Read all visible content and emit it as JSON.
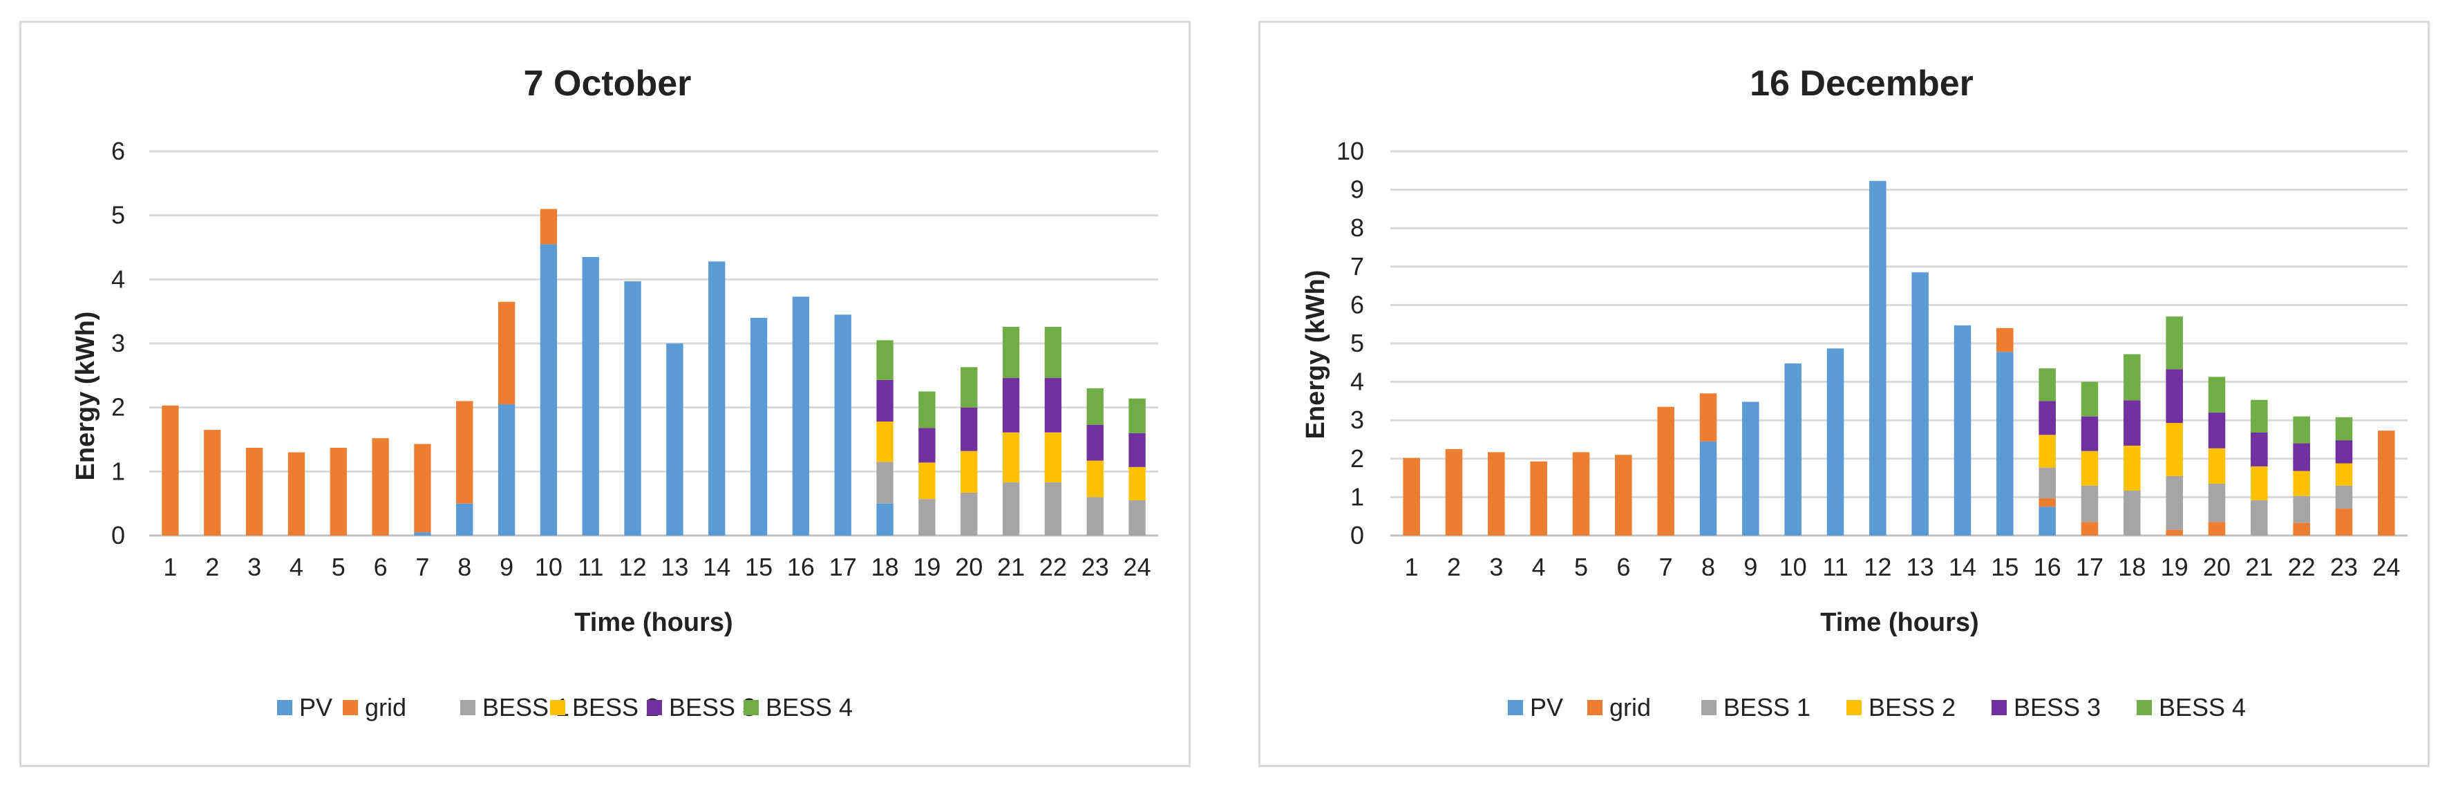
{
  "chart_data": [
    {
      "type": "bar",
      "stacked": true,
      "title": "7 October",
      "xlabel": "Time (hours)",
      "ylabel": "Energy (kWh)",
      "ylim": [
        0,
        6
      ],
      "yticks": [
        "0",
        "1",
        "2",
        "3",
        "4",
        "5",
        "6"
      ],
      "grid": true,
      "legend_position": "bottom",
      "categories": [
        "1",
        "2",
        "3",
        "4",
        "5",
        "6",
        "7",
        "8",
        "9",
        "10",
        "11",
        "12",
        "13",
        "14",
        "15",
        "16",
        "17",
        "18",
        "19",
        "20",
        "21",
        "22",
        "23",
        "24"
      ],
      "series": [
        {
          "name": "PV",
          "color": "#5B9BD5",
          "values": [
            0,
            0,
            0,
            0,
            0,
            0,
            0.05,
            0.5,
            2.05,
            4.55,
            4.35,
            3.97,
            3.0,
            4.28,
            3.4,
            3.73,
            3.45,
            0.5,
            0,
            0,
            0,
            0,
            0,
            0
          ]
        },
        {
          "name": "grid",
          "color": "#ED7D31",
          "values": [
            2.03,
            1.65,
            1.37,
            1.3,
            1.37,
            1.52,
            1.38,
            1.6,
            1.6,
            0.55,
            0,
            0,
            0,
            0,
            0,
            0,
            0,
            0,
            0,
            0,
            0,
            0,
            0,
            0
          ]
        },
        {
          "name": "BESS 1",
          "color": "#A5A5A5",
          "values": [
            0,
            0,
            0,
            0,
            0,
            0,
            0,
            0,
            0,
            0,
            0,
            0,
            0,
            0,
            0,
            0,
            0,
            0.65,
            0.57,
            0.67,
            0.83,
            0.83,
            0.6,
            0.55
          ]
        },
        {
          "name": "BESS 2",
          "color": "#FFC000",
          "values": [
            0,
            0,
            0,
            0,
            0,
            0,
            0,
            0,
            0,
            0,
            0,
            0,
            0,
            0,
            0,
            0,
            0,
            0.63,
            0.57,
            0.65,
            0.78,
            0.78,
            0.57,
            0.52
          ]
        },
        {
          "name": "BESS 3",
          "color": "#7030A0",
          "values": [
            0,
            0,
            0,
            0,
            0,
            0,
            0,
            0,
            0,
            0,
            0,
            0,
            0,
            0,
            0,
            0,
            0,
            0.65,
            0.54,
            0.68,
            0.85,
            0.85,
            0.56,
            0.53
          ]
        },
        {
          "name": "BESS 4",
          "color": "#70AD47",
          "values": [
            0,
            0,
            0,
            0,
            0,
            0,
            0,
            0,
            0,
            0,
            0,
            0,
            0,
            0,
            0,
            0,
            0,
            0.62,
            0.57,
            0.63,
            0.8,
            0.8,
            0.57,
            0.54
          ]
        }
      ]
    },
    {
      "type": "bar",
      "stacked": true,
      "title": "16 December",
      "xlabel": "Time (hours)",
      "ylabel": "Energy (kWh)",
      "ylim": [
        0,
        10
      ],
      "yticks": [
        "0",
        "1",
        "2",
        "3",
        "4",
        "5",
        "6",
        "7",
        "8",
        "9",
        "10"
      ],
      "grid": true,
      "legend_position": "bottom",
      "categories": [
        "1",
        "2",
        "3",
        "4",
        "5",
        "6",
        "7",
        "8",
        "9",
        "10",
        "11",
        "12",
        "13",
        "14",
        "15",
        "16",
        "17",
        "18",
        "19",
        "20",
        "21",
        "22",
        "23",
        "24"
      ],
      "series": [
        {
          "name": "PV",
          "color": "#5B9BD5",
          "values": [
            0,
            0,
            0,
            0,
            0,
            0,
            0,
            2.45,
            3.48,
            4.48,
            4.87,
            9.23,
            6.85,
            5.47,
            4.78,
            0.75,
            0,
            0,
            0,
            0,
            0,
            0,
            0,
            0
          ]
        },
        {
          "name": "grid",
          "color": "#ED7D31",
          "values": [
            2.02,
            2.25,
            2.17,
            1.93,
            2.17,
            2.1,
            3.35,
            1.25,
            0,
            0,
            0,
            0,
            0,
            0,
            0.62,
            0.22,
            0.35,
            0,
            0.15,
            0.35,
            0,
            0.33,
            0.7,
            2.73
          ]
        },
        {
          "name": "BESS 1",
          "color": "#A5A5A5",
          "values": [
            0,
            0,
            0,
            0,
            0,
            0,
            0,
            0,
            0,
            0,
            0,
            0,
            0,
            0,
            0,
            0.8,
            0.95,
            1.17,
            1.4,
            1.0,
            0.92,
            0.7,
            0.6,
            0
          ]
        },
        {
          "name": "BESS 2",
          "color": "#FFC000",
          "values": [
            0,
            0,
            0,
            0,
            0,
            0,
            0,
            0,
            0,
            0,
            0,
            0,
            0,
            0,
            0,
            0.85,
            0.9,
            1.17,
            1.38,
            0.92,
            0.88,
            0.65,
            0.58,
            0
          ]
        },
        {
          "name": "BESS 3",
          "color": "#7030A0",
          "values": [
            0,
            0,
            0,
            0,
            0,
            0,
            0,
            0,
            0,
            0,
            0,
            0,
            0,
            0,
            0,
            0.88,
            0.9,
            1.18,
            1.4,
            0.93,
            0.88,
            0.72,
            0.6,
            0
          ]
        },
        {
          "name": "BESS 4",
          "color": "#70AD47",
          "values": [
            0,
            0,
            0,
            0,
            0,
            0,
            0,
            0,
            0,
            0,
            0,
            0,
            0,
            0,
            0,
            0.85,
            0.9,
            1.2,
            1.37,
            0.93,
            0.85,
            0.7,
            0.6,
            0
          ]
        }
      ]
    }
  ]
}
